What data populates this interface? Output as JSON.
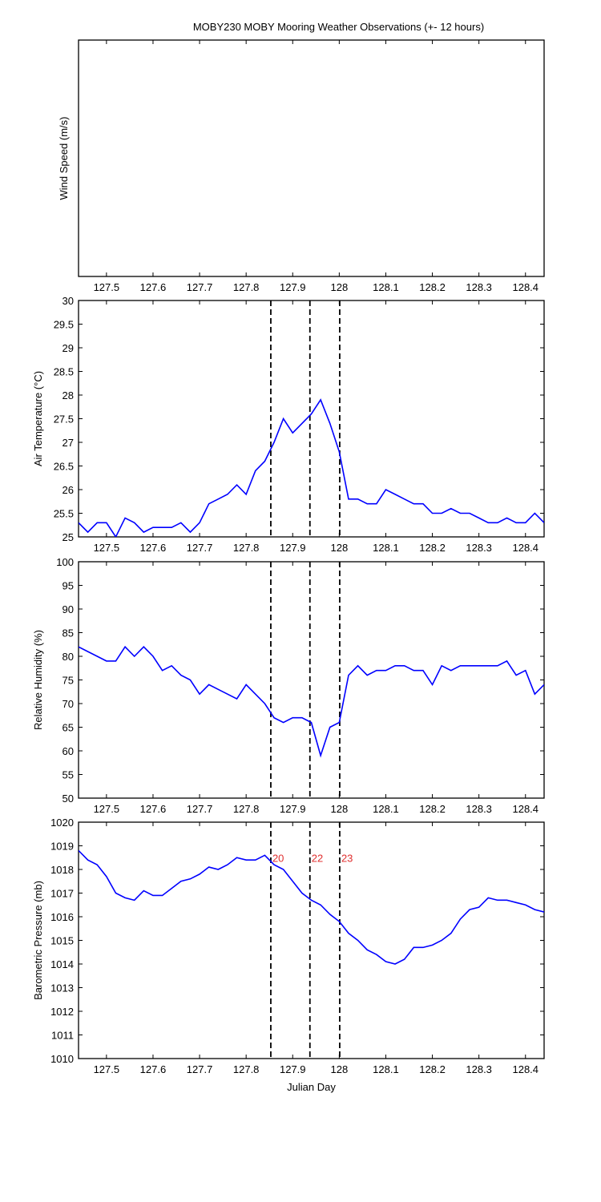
{
  "chart_data": [
    {
      "type": "line",
      "title": "MOBY230 MOBY Mooring Weather Observations (+- 12 hours)",
      "ylabel": "Wind Speed (m/s)",
      "xlim": [
        127.44,
        128.44
      ],
      "xticks": [
        127.5,
        127.6,
        127.7,
        127.8,
        127.9,
        128,
        128.1,
        128.2,
        128.3,
        128.4
      ],
      "x": [],
      "series": []
    },
    {
      "type": "line",
      "ylabel": "Air Temperature (°C)",
      "xlim": [
        127.44,
        128.44
      ],
      "xticks": [
        127.5,
        127.6,
        127.7,
        127.8,
        127.9,
        128,
        128.1,
        128.2,
        128.3,
        128.4
      ],
      "ylim": [
        25,
        30
      ],
      "yticks": [
        25,
        25.5,
        26,
        26.5,
        27,
        27.5,
        28,
        28.5,
        29,
        29.5,
        30
      ],
      "vlines": [
        127.853,
        127.937,
        128.001
      ],
      "vline_color": "#000000",
      "x": [
        127.44,
        127.46,
        127.48,
        127.5,
        127.52,
        127.54,
        127.56,
        127.58,
        127.6,
        127.62,
        127.64,
        127.66,
        127.68,
        127.7,
        127.72,
        127.74,
        127.76,
        127.78,
        127.8,
        127.82,
        127.84,
        127.86,
        127.88,
        127.9,
        127.92,
        127.94,
        127.96,
        127.98,
        128.0,
        128.02,
        128.04,
        128.06,
        128.08,
        128.1,
        128.12,
        128.14,
        128.16,
        128.18,
        128.2,
        128.22,
        128.24,
        128.26,
        128.28,
        128.3,
        128.32,
        128.34,
        128.36,
        128.38,
        128.4,
        128.42,
        128.44
      ],
      "series": [
        {
          "color": "#0000ff",
          "values": [
            25.3,
            25.1,
            25.3,
            25.3,
            25.0,
            25.4,
            25.3,
            25.1,
            25.2,
            25.2,
            25.2,
            25.3,
            25.1,
            25.3,
            25.7,
            25.8,
            25.9,
            26.1,
            25.9,
            26.4,
            26.6,
            27.0,
            27.5,
            27.2,
            27.4,
            27.6,
            27.9,
            27.4,
            26.8,
            25.8,
            25.8,
            25.7,
            25.7,
            26.0,
            25.9,
            25.8,
            25.7,
            25.7,
            25.5,
            25.5,
            25.6,
            25.5,
            25.5,
            25.4,
            25.3,
            25.3,
            25.4,
            25.3,
            25.3,
            25.5,
            25.3
          ]
        }
      ]
    },
    {
      "type": "line",
      "ylabel": "Relative Humidity (%)",
      "xlim": [
        127.44,
        128.44
      ],
      "xticks": [
        127.5,
        127.6,
        127.7,
        127.8,
        127.9,
        128,
        128.1,
        128.2,
        128.3,
        128.4
      ],
      "ylim": [
        50,
        100
      ],
      "yticks": [
        50,
        55,
        60,
        65,
        70,
        75,
        80,
        85,
        90,
        95,
        100
      ],
      "vlines": [
        127.853,
        127.937,
        128.001
      ],
      "vline_color": "#000000",
      "x": [
        127.44,
        127.46,
        127.48,
        127.5,
        127.52,
        127.54,
        127.56,
        127.58,
        127.6,
        127.62,
        127.64,
        127.66,
        127.68,
        127.7,
        127.72,
        127.74,
        127.76,
        127.78,
        127.8,
        127.82,
        127.84,
        127.86,
        127.88,
        127.9,
        127.92,
        127.94,
        127.96,
        127.98,
        128.0,
        128.02,
        128.04,
        128.06,
        128.08,
        128.1,
        128.12,
        128.14,
        128.16,
        128.18,
        128.2,
        128.22,
        128.24,
        128.26,
        128.28,
        128.3,
        128.32,
        128.34,
        128.36,
        128.38,
        128.4,
        128.42,
        128.44
      ],
      "series": [
        {
          "color": "#0000ff",
          "values": [
            82,
            81,
            80,
            79,
            79,
            82,
            80,
            82,
            80,
            77,
            78,
            76,
            75,
            72,
            74,
            73,
            72,
            71,
            74,
            72,
            70,
            67,
            66,
            67,
            67,
            66,
            59,
            65,
            66,
            76,
            78,
            76,
            77,
            77,
            78,
            78,
            77,
            77,
            74,
            78,
            77,
            78,
            78,
            78,
            78,
            78,
            79,
            76,
            77,
            72,
            74
          ]
        }
      ]
    },
    {
      "type": "line",
      "ylabel": "Barometric Pressure (mb)",
      "xlabel": "Julian Day",
      "xlim": [
        127.44,
        128.44
      ],
      "xticks": [
        127.5,
        127.6,
        127.7,
        127.8,
        127.9,
        128,
        128.1,
        128.2,
        128.3,
        128.4
      ],
      "ylim": [
        1010,
        1020
      ],
      "yticks": [
        1010,
        1011,
        1012,
        1013,
        1014,
        1015,
        1016,
        1017,
        1018,
        1019,
        1020
      ],
      "vlines": [
        127.853,
        127.937,
        128.001
      ],
      "vline_color": "#000000",
      "annotations": [
        {
          "text": "20",
          "x": 127.853,
          "y": 1018.5
        },
        {
          "text": "22",
          "x": 127.937,
          "y": 1018.5
        },
        {
          "text": "23",
          "x": 128.001,
          "y": 1018.5
        }
      ],
      "annotation_color": "#e03030",
      "x": [
        127.44,
        127.46,
        127.48,
        127.5,
        127.52,
        127.54,
        127.56,
        127.58,
        127.6,
        127.62,
        127.64,
        127.66,
        127.68,
        127.7,
        127.72,
        127.74,
        127.76,
        127.78,
        127.8,
        127.82,
        127.84,
        127.86,
        127.88,
        127.9,
        127.92,
        127.94,
        127.96,
        127.98,
        128.0,
        128.02,
        128.04,
        128.06,
        128.08,
        128.1,
        128.12,
        128.14,
        128.16,
        128.18,
        128.2,
        128.22,
        128.24,
        128.26,
        128.28,
        128.3,
        128.32,
        128.34,
        128.36,
        128.38,
        128.4,
        128.42,
        128.44
      ],
      "series": [
        {
          "color": "#0000ff",
          "values": [
            1018.8,
            1018.4,
            1018.2,
            1017.7,
            1017.0,
            1016.8,
            1016.7,
            1017.1,
            1016.9,
            1016.9,
            1017.2,
            1017.5,
            1017.6,
            1017.8,
            1018.1,
            1018.0,
            1018.2,
            1018.5,
            1018.4,
            1018.4,
            1018.6,
            1018.2,
            1018.0,
            1017.5,
            1017.0,
            1016.7,
            1016.5,
            1016.1,
            1015.8,
            1015.3,
            1015.0,
            1014.6,
            1014.4,
            1014.1,
            1014.0,
            1014.2,
            1014.7,
            1014.7,
            1014.8,
            1015.0,
            1015.3,
            1015.9,
            1016.3,
            1016.4,
            1016.8,
            1016.7,
            1016.7,
            1016.6,
            1016.5,
            1016.3,
            1016.2
          ]
        }
      ]
    }
  ]
}
